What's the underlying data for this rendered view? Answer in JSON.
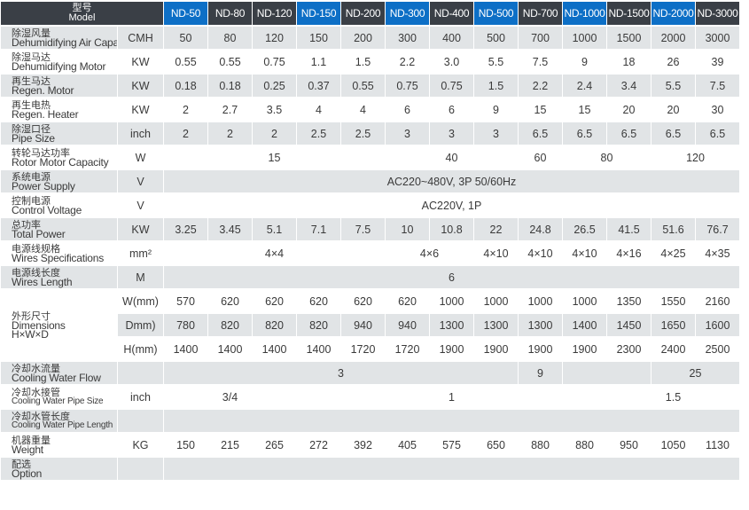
{
  "header": {
    "model_zh": "型号",
    "model_en": "Model",
    "models": [
      "ND-50",
      "ND-80",
      "ND-120",
      "ND-150",
      "ND-200",
      "ND-300",
      "ND-400",
      "ND-500",
      "ND-700",
      "ND-1000",
      "ND-1500",
      "ND-2000",
      "ND-3000"
    ],
    "highlight_color": "#0d6fc6",
    "dark_color": "#3a3f46"
  },
  "rows": {
    "air_capacity": {
      "zh": "除湿风量",
      "en": "Dehumidifying Air Capacity",
      "unit": "CMH",
      "values": [
        "50",
        "80",
        "120",
        "150",
        "200",
        "300",
        "400",
        "500",
        "700",
        "1000",
        "1500",
        "2000",
        "3000"
      ]
    },
    "dehum_motor": {
      "zh": "除湿马达",
      "en": "Dehumidifying Motor",
      "unit": "KW",
      "values": [
        "0.55",
        "0.55",
        "0.75",
        "1.1",
        "1.5",
        "2.2",
        "3.0",
        "5.5",
        "7.5",
        "9",
        "18",
        "26",
        "39"
      ]
    },
    "regen_motor": {
      "zh": "再生马达",
      "en": "Regen. Motor",
      "unit": "KW",
      "values": [
        "0.18",
        "0.18",
        "0.25",
        "0.37",
        "0.55",
        "0.75",
        "0.75",
        "1.5",
        "2.2",
        "2.4",
        "3.4",
        "5.5",
        "7.5"
      ]
    },
    "regen_heater": {
      "zh": "再生电热",
      "en": "Regen. Heater",
      "unit": "KW",
      "values": [
        "2",
        "2.7",
        "3.5",
        "4",
        "4",
        "6",
        "6",
        "9",
        "15",
        "15",
        "20",
        "20",
        "30"
      ]
    },
    "pipe_size": {
      "zh": "除湿口径",
      "en": "Pipe Size",
      "unit": "inch",
      "values": [
        "2",
        "2",
        "2",
        "2.5",
        "2.5",
        "3",
        "3",
        "3",
        "6.5",
        "6.5",
        "6.5",
        "6.5",
        "6.5"
      ]
    },
    "rotor_motor": {
      "zh": "转轮马达功率",
      "en": "Rotor Motor Capacity",
      "unit": "W",
      "v1": "15",
      "v2": "40",
      "v3": "60",
      "v4": "80",
      "v5": "120"
    },
    "power_supply": {
      "zh": "系统电源",
      "en": "Power Supply",
      "unit": "V",
      "value": "AC220~480V, 3P 50/60Hz"
    },
    "control_voltage": {
      "zh": "控制电源",
      "en": "Control Voltage",
      "unit": "V",
      "value": "AC220V, 1P"
    },
    "total_power": {
      "zh": "总功率",
      "en": "Total Power",
      "unit": "KW",
      "values": [
        "3.25",
        "3.45",
        "5.1",
        "7.1",
        "7.5",
        "10",
        "10.8",
        "22",
        "24.8",
        "26.5",
        "41.5",
        "51.6",
        "76.7"
      ]
    },
    "wires_spec": {
      "zh": "电源线规格",
      "en": "Wires Specifications",
      "unit": "mm²",
      "v1": "4×4",
      "v2": "4×6",
      "v3": "4×10",
      "v4": "4×10",
      "v5": "4×10",
      "v6": "4×16",
      "v7": "4×25",
      "v8": "4×35"
    },
    "wires_length": {
      "zh": "电源线长度",
      "en": "Wires Length",
      "unit": "M",
      "value": "6"
    },
    "dimensions": {
      "zh": "外形尺寸",
      "en": "Dimensions",
      "en2": "H×W×D",
      "w_unit": "W(mm)",
      "w_values": [
        "570",
        "620",
        "620",
        "620",
        "620",
        "620",
        "1000",
        "1000",
        "1000",
        "1000",
        "1350",
        "1550",
        "2160"
      ],
      "d_unit": "Dmm)",
      "d_values": [
        "780",
        "820",
        "820",
        "820",
        "940",
        "940",
        "1300",
        "1300",
        "1300",
        "1400",
        "1450",
        "1650",
        "1600"
      ],
      "h_unit": "H(mm)",
      "h_values": [
        "1400",
        "1400",
        "1400",
        "1400",
        "1720",
        "1720",
        "1900",
        "1900",
        "1900",
        "1900",
        "2300",
        "2400",
        "2500"
      ]
    },
    "cooling_flow": {
      "zh": "冷却水流量",
      "en": "Cooling Water Flow",
      "v1": "3",
      "v2": "9",
      "v3": "25"
    },
    "cooling_pipe_size": {
      "zh": "冷却水接管",
      "en": "Cooling Water Pipe Size",
      "unit": "inch",
      "v1": "3/4",
      "v2": "1",
      "v3": "1.5"
    },
    "cooling_pipe_length": {
      "zh": "冷却水管长度",
      "en": "Cooling Water Pipe Length"
    },
    "weight": {
      "zh": "机器重量",
      "en": "Weight",
      "unit": "KG",
      "values": [
        "150",
        "215",
        "265",
        "272",
        "392",
        "405",
        "575",
        "650",
        "880",
        "880",
        "950",
        "1050",
        "1130"
      ]
    },
    "option": {
      "zh": "配选",
      "en": "Option"
    }
  }
}
